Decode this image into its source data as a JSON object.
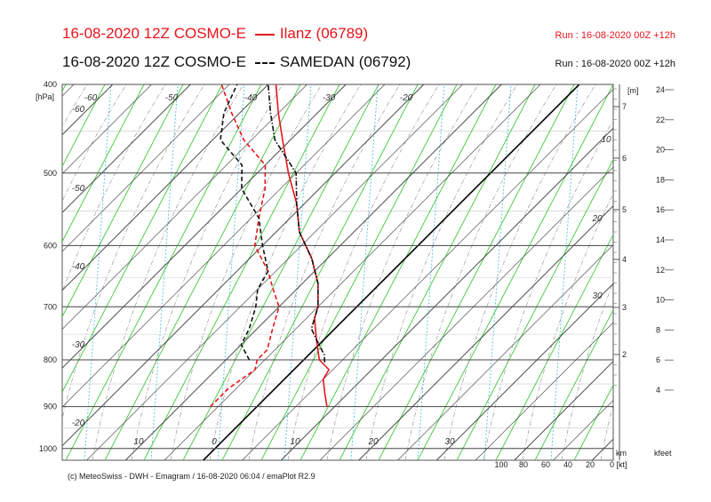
{
  "header": {
    "title1": "16-08-2020 12Z COSMO-E",
    "station1": "Ilanz (06789)",
    "title2": "16-08-2020 12Z COSMO-E",
    "station2": "SAMEDAN (06792)",
    "run1": "Run : 16-08-2020 00Z +12h",
    "run2": "Run : 16-08-2020 00Z +12h"
  },
  "footer": "(c) MeteoSwiss - DWH - Emagram / 16-08-2020  06:04 / emaPlot R2.9",
  "colors": {
    "ilanz": "#e8141b",
    "samedan": "#111111",
    "isotherm": "#333333",
    "dry_adiabat": "#3fc93a",
    "mixing": "#4fc3e0"
  },
  "chart_data": {
    "type": "line",
    "ylabel": "[hPa]",
    "y_scale": "log",
    "y_ticks": [
      "400",
      "500",
      "600",
      "700",
      "800",
      "900",
      "1000"
    ],
    "ylim": [
      1030,
      400
    ],
    "temp_labels": [
      "-60",
      "-50",
      "-40",
      "-30",
      "-20",
      "-10",
      "0",
      "10",
      "20",
      "30"
    ],
    "right_km_label": "[m]",
    "km_ticks": [
      "7",
      "6",
      "5",
      "4",
      "3",
      "2"
    ],
    "kfeet_ticks": [
      "24",
      "22",
      "20",
      "18",
      "16",
      "14",
      "12",
      "10",
      "8",
      "6",
      "4"
    ],
    "wind_labels": [
      "100",
      "80",
      "60",
      "40",
      "20",
      "0 [kt]"
    ],
    "km_unit": "km",
    "kfeet_unit": "kfeet",
    "series": [
      {
        "name": "Ilanz (06789) T",
        "style": "solid",
        "color": "#e8141b",
        "points": [
          [
            900,
            9
          ],
          [
            870,
            7
          ],
          [
            840,
            5
          ],
          [
            820,
            4.5
          ],
          [
            800,
            2
          ],
          [
            760,
            -1
          ],
          [
            720,
            -4
          ],
          [
            700,
            -5
          ],
          [
            660,
            -8
          ],
          [
            620,
            -12
          ],
          [
            580,
            -17
          ],
          [
            540,
            -21
          ],
          [
            500,
            -26
          ],
          [
            460,
            -31
          ],
          [
            430,
            -35
          ],
          [
            400,
            -39
          ]
        ]
      },
      {
        "name": "Ilanz (06789) Td",
        "style": "dashed",
        "color": "#e8141b",
        "points": [
          [
            900,
            -6
          ],
          [
            860,
            -6
          ],
          [
            820,
            -5
          ],
          [
            800,
            -6
          ],
          [
            780,
            -6
          ],
          [
            740,
            -8
          ],
          [
            700,
            -10
          ],
          [
            670,
            -13
          ],
          [
            640,
            -16
          ],
          [
            600,
            -21
          ],
          [
            560,
            -24
          ],
          [
            520,
            -27
          ],
          [
            490,
            -30
          ],
          [
            460,
            -36
          ],
          [
            430,
            -41
          ],
          [
            400,
            -46
          ]
        ]
      },
      {
        "name": "SAMEDAN (06792) T",
        "style": "dash-dot",
        "color": "#111111",
        "points": [
          [
            805,
            3
          ],
          [
            790,
            2
          ],
          [
            770,
            0
          ],
          [
            740,
            -3
          ],
          [
            700,
            -5
          ],
          [
            660,
            -8
          ],
          [
            620,
            -12
          ],
          [
            580,
            -17
          ],
          [
            540,
            -21
          ],
          [
            500,
            -25
          ],
          [
            460,
            -32
          ],
          [
            430,
            -36
          ],
          [
            400,
            -40
          ]
        ]
      },
      {
        "name": "SAMEDAN (06792) Td",
        "style": "dashed",
        "color": "#111111",
        "points": [
          [
            800,
            -7
          ],
          [
            770,
            -10
          ],
          [
            740,
            -11
          ],
          [
            700,
            -13
          ],
          [
            670,
            -15
          ],
          [
            640,
            -16
          ],
          [
            600,
            -20
          ],
          [
            560,
            -24
          ],
          [
            520,
            -30
          ],
          [
            490,
            -33
          ],
          [
            460,
            -39
          ],
          [
            430,
            -42
          ],
          [
            400,
            -44
          ]
        ]
      }
    ],
    "grid": true
  }
}
